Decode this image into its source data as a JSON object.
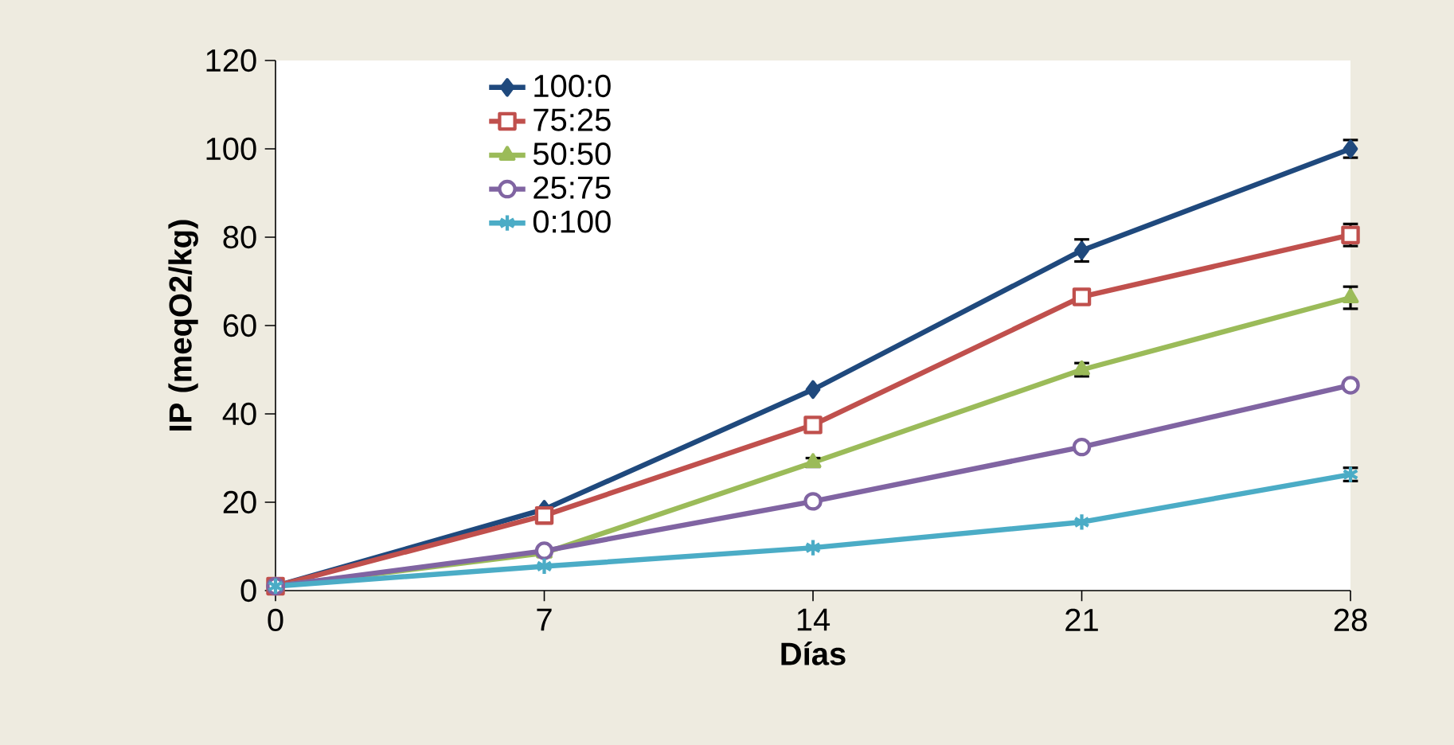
{
  "chart_data": {
    "type": "line",
    "xlabel": "Días",
    "ylabel": "IP (meqO2/kg)",
    "x": [
      0,
      7,
      14,
      21,
      28
    ],
    "xlim": [
      0,
      28
    ],
    "xticks": [
      0,
      7,
      14,
      21,
      28
    ],
    "ylim": [
      0,
      120
    ],
    "yticks": [
      0,
      20,
      40,
      60,
      80,
      100,
      120
    ],
    "legend": "top left",
    "grid": false,
    "line_style": "solid",
    "series": [
      {
        "name": "100:0",
        "color": "#1f497d",
        "marker": "diamond",
        "values": [
          1,
          18.4,
          45.5,
          77,
          100
        ],
        "errors": [
          null,
          null,
          null,
          2.5,
          2
        ]
      },
      {
        "name": "75:25",
        "color": "#c0504d",
        "marker": "square",
        "values": [
          1,
          17,
          37.5,
          66.5,
          80.5
        ],
        "errors": [
          null,
          null,
          null,
          null,
          2.5
        ]
      },
      {
        "name": "50:50",
        "color": "#9bbb59",
        "marker": "triangle",
        "values": [
          1,
          8.5,
          29,
          50,
          66.3
        ],
        "errors": [
          null,
          null,
          1,
          1.5,
          2.5
        ]
      },
      {
        "name": "25:75",
        "color": "#8064a2",
        "marker": "circle",
        "values": [
          1,
          9,
          20.2,
          32.5,
          46.5
        ]
      },
      {
        "name": "0:100",
        "color": "#4bacc6",
        "marker": "cross",
        "values": [
          1,
          5.5,
          9.7,
          15.5,
          26.3
        ],
        "errors": [
          null,
          null,
          null,
          null,
          1.5
        ]
      }
    ]
  }
}
